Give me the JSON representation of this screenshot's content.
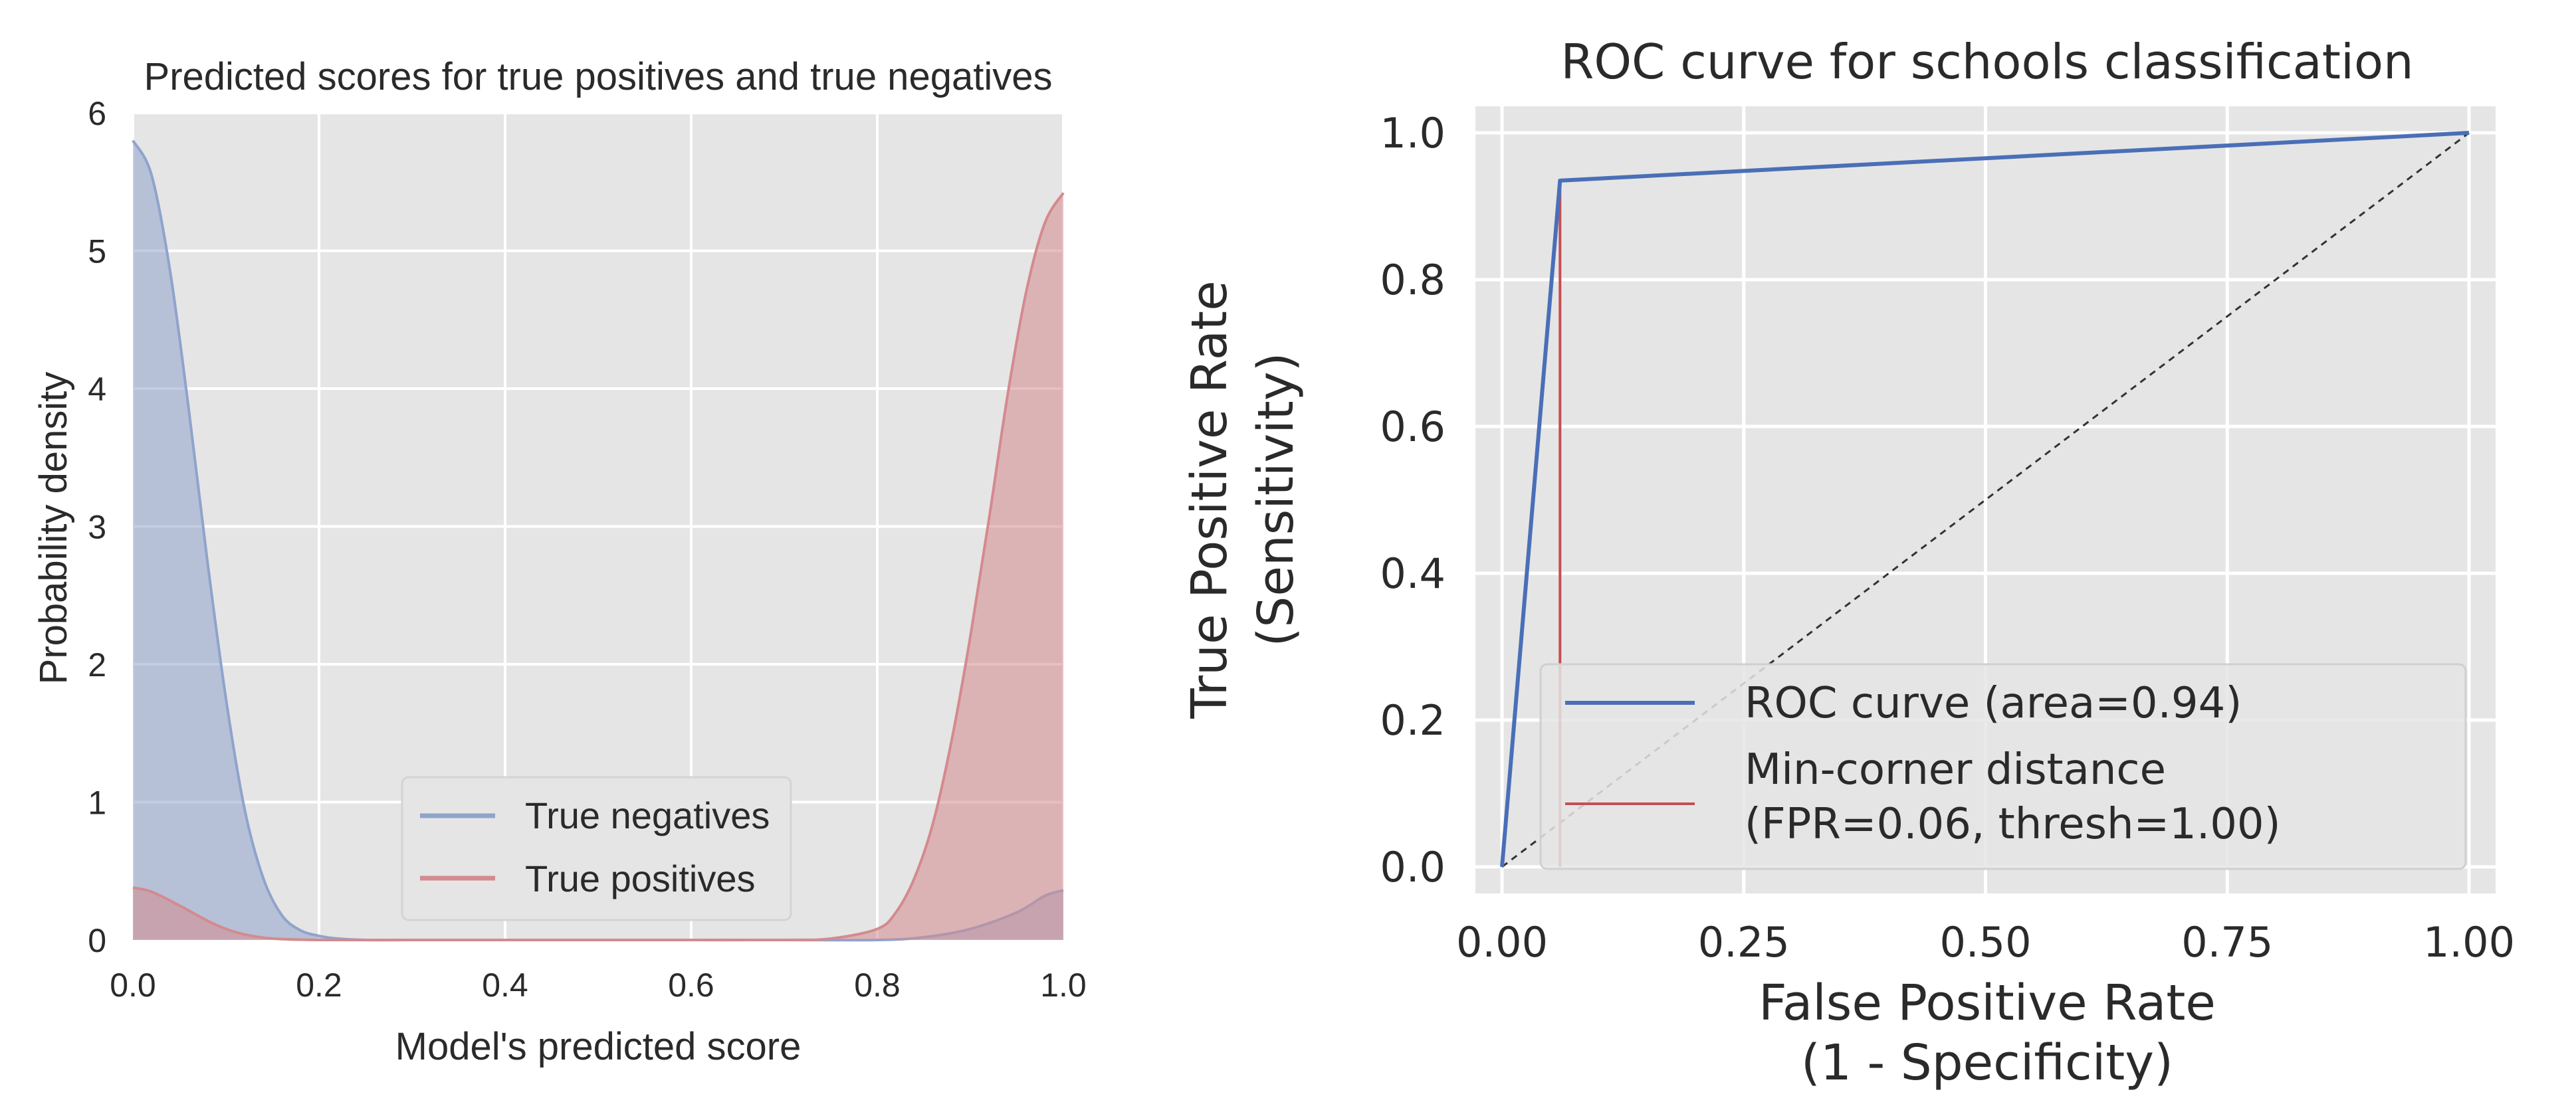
{
  "chart_data": [
    {
      "type": "area",
      "title": "Predicted scores for true positives and true negatives",
      "xlabel": "Model's predicted score",
      "ylabel": "Probability density",
      "xlim": [
        0,
        1
      ],
      "ylim": [
        0,
        6
      ],
      "x_ticks": [
        "0.0",
        "0.2",
        "0.4",
        "0.6",
        "0.8",
        "1.0"
      ],
      "y_ticks": [
        "0",
        "1",
        "2",
        "3",
        "4",
        "5",
        "6"
      ],
      "grid": true,
      "legend_position": "lower-center",
      "series": [
        {
          "name": "True negatives",
          "color": "#8fa3cc",
          "x": [
            0.0,
            0.02,
            0.04,
            0.06,
            0.08,
            0.1,
            0.12,
            0.14,
            0.16,
            0.18,
            0.2,
            0.22,
            0.25,
            0.3,
            0.4,
            0.5,
            0.6,
            0.7,
            0.8,
            0.85,
            0.9,
            0.95,
            0.98,
            1.0
          ],
          "values": [
            5.8,
            5.55,
            4.85,
            3.85,
            2.75,
            1.75,
            0.95,
            0.45,
            0.18,
            0.07,
            0.03,
            0.01,
            0.0,
            0.0,
            0.0,
            0.0,
            0.0,
            0.0,
            0.0,
            0.02,
            0.08,
            0.2,
            0.32,
            0.36
          ]
        },
        {
          "name": "True positives",
          "color": "#d48a8e",
          "x": [
            0.0,
            0.02,
            0.05,
            0.08,
            0.1,
            0.12,
            0.15,
            0.2,
            0.3,
            0.4,
            0.5,
            0.6,
            0.7,
            0.75,
            0.8,
            0.82,
            0.84,
            0.86,
            0.88,
            0.9,
            0.92,
            0.94,
            0.96,
            0.98,
            1.0
          ],
          "values": [
            0.38,
            0.35,
            0.25,
            0.14,
            0.08,
            0.04,
            0.01,
            0.0,
            0.0,
            0.0,
            0.0,
            0.0,
            0.0,
            0.01,
            0.08,
            0.2,
            0.45,
            0.85,
            1.45,
            2.2,
            3.05,
            3.95,
            4.7,
            5.2,
            5.42
          ]
        }
      ]
    },
    {
      "type": "line",
      "title": "ROC curve for schools classification",
      "xlabel": [
        "False Positive Rate",
        "(1 - Specificity)"
      ],
      "ylabel": [
        "True Positive Rate",
        "(Sensitivity)"
      ],
      "xlim": [
        0,
        1
      ],
      "ylim": [
        0,
        1
      ],
      "x_ticks": [
        "0.00",
        "0.25",
        "0.50",
        "0.75",
        "1.00"
      ],
      "y_ticks": [
        "0.0",
        "0.2",
        "0.4",
        "0.6",
        "0.8",
        "1.0"
      ],
      "grid": true,
      "legend_position": "lower-right",
      "series": [
        {
          "name": "ROC curve (area=0.94)",
          "color": "#4a6fb8",
          "x": [
            0.0,
            0.06,
            1.0
          ],
          "values": [
            0.0,
            0.935,
            1.0
          ]
        },
        {
          "name": [
            "Min-corner distance",
            "(FPR=0.06, thresh=1.00)"
          ],
          "color": "#c44e52",
          "x": [
            0.06,
            0.06
          ],
          "values": [
            0.0,
            0.935
          ]
        }
      ],
      "reference_line": {
        "x": [
          0.0,
          1.0
        ],
        "values": [
          0.0,
          1.0
        ],
        "color": "#333333"
      }
    }
  ]
}
